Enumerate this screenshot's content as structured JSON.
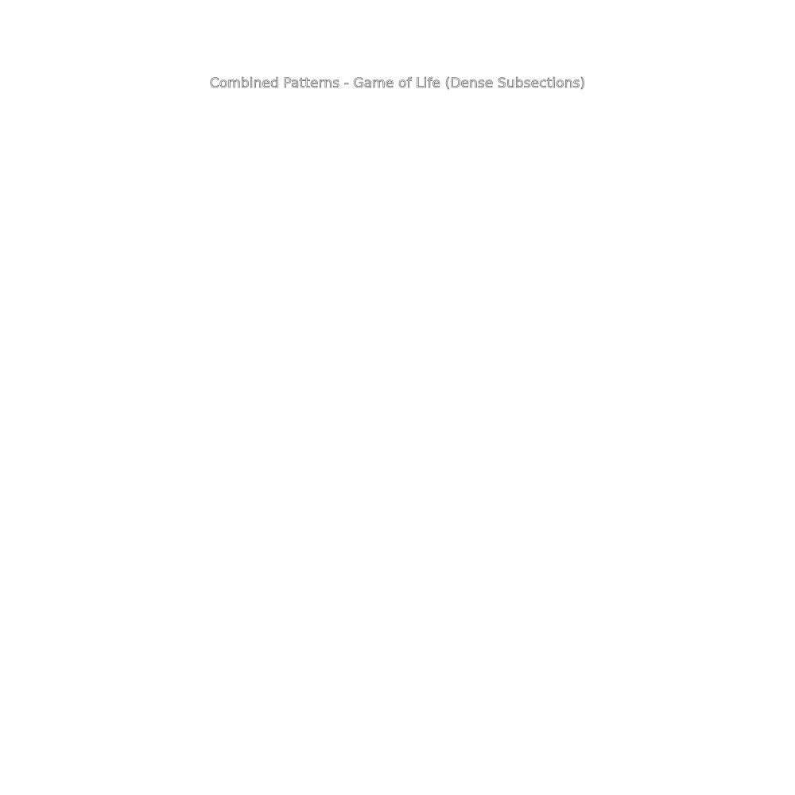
{
  "figure": {
    "title": "Combined Patterns - Game of Life (Dense Subsections)",
    "background_color": "#ffffff",
    "title_color": "#444444"
  }
}
